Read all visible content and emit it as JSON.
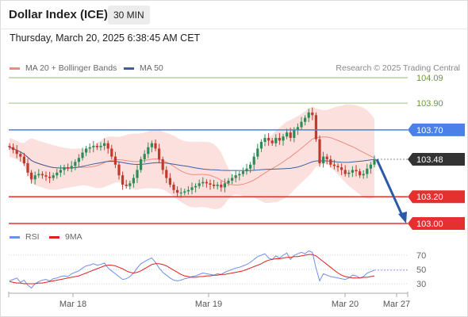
{
  "header": {
    "title": "Dollar Index (ICE)",
    "timeframe": "30 MIN",
    "datetime": "Thursday, March 20, 2025 6:38:45 AM CET"
  },
  "legend": {
    "main": [
      {
        "label": "MA 20 + Bollinger Bands",
        "color": "#f08a80"
      },
      {
        "label": "MA 50",
        "color": "#3d5fa0"
      }
    ],
    "rsi": [
      {
        "label": "RSI",
        "color": "#6f8fe8"
      },
      {
        "label": "9MA",
        "color": "#e02020"
      }
    ],
    "credit": "Research © 2025 Trading Central"
  },
  "colors": {
    "up": "#2e8b57",
    "down": "#c0392b",
    "resistance": "#4a80e8",
    "support": "#e53030",
    "target": "#7ab55c",
    "current": "#333333",
    "band": "#fbd5d1",
    "arrow": "#2a5aa8"
  },
  "chart_data": [
    {
      "type": "candlestick",
      "x_ticks": [
        "Mar 18",
        "Mar 19",
        "Mar 20",
        "Mar 27"
      ],
      "levels": [
        {
          "value": 104.09,
          "label": "104.09",
          "kind": "target"
        },
        {
          "value": 103.9,
          "label": "103.90",
          "kind": "target"
        },
        {
          "value": 103.7,
          "label": "103.70",
          "kind": "resistance"
        },
        {
          "value": 103.48,
          "label": "103.48",
          "kind": "current"
        },
        {
          "value": 103.2,
          "label": "103.20",
          "kind": "support"
        },
        {
          "value": 103.0,
          "label": "103.00",
          "kind": "support"
        }
      ],
      "ylim": [
        102.97,
        104.12
      ],
      "projection": {
        "from": 103.48,
        "to": 103.0
      },
      "close": [
        103.57,
        103.55,
        103.52,
        103.5,
        103.45,
        103.38,
        103.33,
        103.36,
        103.37,
        103.36,
        103.35,
        103.34,
        103.36,
        103.38,
        103.4,
        103.42,
        103.41,
        103.43,
        103.46,
        103.49,
        103.53,
        103.56,
        103.57,
        103.58,
        103.57,
        103.58,
        103.6,
        103.56,
        103.5,
        103.44,
        103.36,
        103.29,
        103.28,
        103.3,
        103.34,
        103.4,
        103.48,
        103.52,
        103.57,
        103.6,
        103.56,
        103.48,
        103.4,
        103.34,
        103.29,
        103.25,
        103.23,
        103.23,
        103.24,
        103.25,
        103.27,
        103.28,
        103.3,
        103.31,
        103.3,
        103.29,
        103.28,
        103.29,
        103.27,
        103.3,
        103.32,
        103.34,
        103.36,
        103.37,
        103.39,
        103.41,
        103.44,
        103.5,
        103.56,
        103.61,
        103.64,
        103.62,
        103.6,
        103.64,
        103.62,
        103.65,
        103.68,
        103.64,
        103.7,
        103.72,
        103.76,
        103.79,
        103.83,
        103.81,
        103.63,
        103.45,
        103.5,
        103.48,
        103.44,
        103.43,
        103.42,
        103.4,
        103.37,
        103.38,
        103.4,
        103.39,
        103.36,
        103.37,
        103.41,
        103.44,
        103.48
      ]
    },
    {
      "type": "line",
      "name": "RSI panel",
      "y_ticks": [
        70,
        50,
        30
      ],
      "ylim": [
        20,
        80
      ],
      "series": [
        {
          "name": "RSI",
          "values": [
            34,
            36,
            38,
            32,
            35,
            28,
            24,
            30,
            33,
            35,
            36,
            34,
            37,
            38,
            40,
            41,
            40,
            44,
            46,
            48,
            52,
            55,
            56,
            58,
            56,
            57,
            59,
            52,
            48,
            44,
            40,
            36,
            37,
            40,
            45,
            52,
            58,
            61,
            64,
            66,
            60,
            52,
            46,
            42,
            38,
            35,
            34,
            35,
            37,
            38,
            40,
            41,
            43,
            45,
            44,
            43,
            42,
            44,
            43,
            46,
            48,
            50,
            52,
            53,
            55,
            57,
            60,
            64,
            68,
            70,
            72,
            66,
            64,
            69,
            66,
            70,
            73,
            64,
            70,
            72,
            74,
            72,
            76,
            74,
            52,
            34,
            44,
            42,
            40,
            39,
            38,
            37,
            36,
            38,
            42,
            41,
            38,
            40,
            45,
            47,
            49
          ]
        },
        {
          "name": "9MA",
          "values": [
            33,
            32,
            31,
            31,
            30,
            30,
            30,
            30,
            31,
            31,
            32,
            33,
            34,
            35,
            36,
            37,
            38,
            39,
            40,
            41,
            43,
            45,
            47,
            49,
            51,
            53,
            55,
            56,
            56,
            55,
            53,
            51,
            48,
            46,
            45,
            46,
            48,
            51,
            54,
            57,
            58,
            58,
            57,
            55,
            52,
            49,
            46,
            43,
            41,
            40,
            39,
            39,
            40,
            40,
            41,
            41,
            42,
            42,
            43,
            43,
            44,
            45,
            46,
            47,
            48,
            50,
            52,
            54,
            56,
            58,
            61,
            63,
            64,
            65,
            65,
            66,
            67,
            67,
            68,
            68,
            69,
            70,
            71,
            71,
            69,
            65,
            61,
            57,
            53,
            49,
            45,
            42,
            40,
            39,
            38,
            38,
            38,
            39,
            39,
            40,
            41
          ]
        }
      ]
    }
  ]
}
